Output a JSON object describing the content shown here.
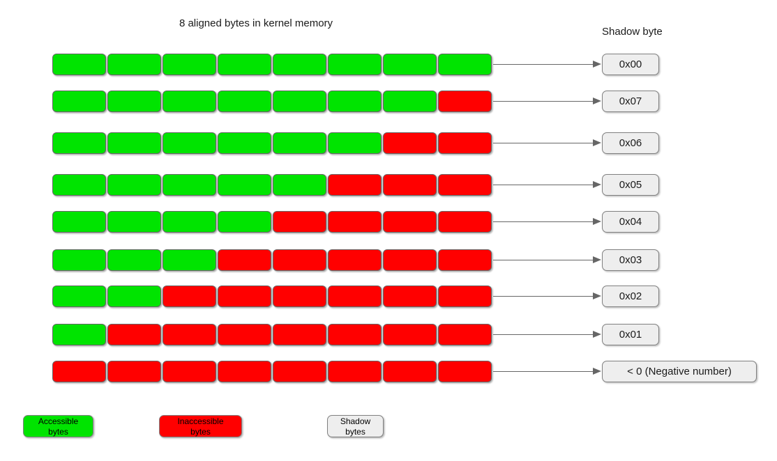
{
  "titles": {
    "main": "8 aligned bytes in kernel memory",
    "shadow_column": "Shadow byte"
  },
  "chart_rows": [
    {
      "accessible_bytes": 8,
      "inaccessible_bytes": 0,
      "shadow_label": "0x00"
    },
    {
      "accessible_bytes": 7,
      "inaccessible_bytes": 1,
      "shadow_label": "0x07"
    },
    {
      "accessible_bytes": 6,
      "inaccessible_bytes": 2,
      "shadow_label": "0x06"
    },
    {
      "accessible_bytes": 5,
      "inaccessible_bytes": 3,
      "shadow_label": "0x05"
    },
    {
      "accessible_bytes": 4,
      "inaccessible_bytes": 4,
      "shadow_label": "0x04"
    },
    {
      "accessible_bytes": 3,
      "inaccessible_bytes": 5,
      "shadow_label": "0x03"
    },
    {
      "accessible_bytes": 2,
      "inaccessible_bytes": 6,
      "shadow_label": "0x02"
    },
    {
      "accessible_bytes": 1,
      "inaccessible_bytes": 7,
      "shadow_label": "0x01"
    },
    {
      "accessible_bytes": 0,
      "inaccessible_bytes": 8,
      "shadow_label": "< 0 (Negative number)",
      "wide": true
    }
  ],
  "legend": [
    {
      "label": "Accessible\nbytes",
      "type": "accessible"
    },
    {
      "label": "Inaccessible\nbytes",
      "type": "inaccessible"
    },
    {
      "label": "Shadow\nbytes",
      "type": "shadow"
    }
  ],
  "colors": {
    "accessible": "#00e400",
    "inaccessible": "#ff0000",
    "shadow_fill": "#eeeeee",
    "cell_border": "#666666",
    "arrow": "#666666"
  }
}
